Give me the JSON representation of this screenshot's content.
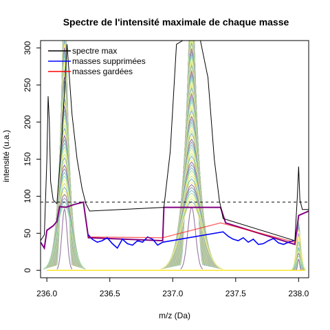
{
  "chart_data": {
    "type": "line",
    "title": "Spectre de l'intensité maximale de chaque masse",
    "xlabel": "m/z (Da)",
    "ylabel": "intensité (u.a.)",
    "xlim": [
      235.95,
      238.08
    ],
    "ylim": [
      -10,
      310
    ],
    "x_ticks": [
      236.0,
      236.5,
      237.0,
      237.5,
      238.0
    ],
    "x_tick_labels": [
      "236.0",
      "236.5",
      "237.0",
      "237.5",
      "238.0"
    ],
    "y_ticks": [
      0,
      50,
      100,
      150,
      200,
      250,
      300
    ],
    "y_tick_labels": [
      "0",
      "50",
      "100",
      "150",
      "200",
      "250",
      "300"
    ],
    "threshold": 92,
    "grid": false,
    "legend_position": "top-left",
    "legend": [
      {
        "label": "spectre max",
        "color": "#000000"
      },
      {
        "label": "masses supprimées",
        "color": "#0000ff"
      },
      {
        "label": "masses gardées",
        "color": "#ff0000"
      }
    ],
    "series": [
      {
        "name": "spectre max",
        "color": "#000000",
        "x": [
          235.95,
          235.98,
          236.0,
          236.01,
          236.02,
          236.03,
          236.05,
          236.08,
          236.12,
          236.16,
          236.2,
          236.24,
          236.28,
          236.31,
          236.34,
          236.93,
          236.98,
          237.03,
          237.08,
          237.15,
          237.22,
          237.28,
          237.33,
          237.37,
          237.4,
          237.97,
          237.99,
          238.0,
          238.01,
          238.03,
          238.08
        ],
        "y": [
          40,
          48,
          150,
          235,
          200,
          120,
          95,
          90,
          180,
          305,
          210,
          150,
          110,
          90,
          80,
          85,
          160,
          305,
          310,
          310,
          310,
          260,
          150,
          95,
          70,
          40,
          100,
          140,
          95,
          82,
          82
        ]
      },
      {
        "name": "masses supprimées",
        "color": "#0000ff",
        "x": [
          236.33,
          236.36,
          236.4,
          236.44,
          236.48,
          236.52,
          236.56,
          236.6,
          236.64,
          236.68,
          236.72,
          236.76,
          236.8,
          236.84,
          236.88,
          236.92,
          237.4,
          237.44,
          237.48,
          237.52,
          237.56,
          237.6,
          237.64,
          237.68,
          237.72,
          237.76,
          237.8,
          237.84,
          237.88,
          237.92,
          237.96
        ],
        "y": [
          48,
          42,
          38,
          40,
          44,
          36,
          30,
          42,
          36,
          34,
          40,
          38,
          45,
          42,
          34,
          38,
          52,
          46,
          42,
          40,
          44,
          38,
          42,
          35,
          36,
          40,
          43,
          37,
          35,
          38,
          40
        ]
      },
      {
        "name": "masses gardées",
        "color": "#ff0000",
        "x": [
          236.33,
          236.92,
          237.38,
          237.97
        ],
        "y": [
          45,
          44,
          64,
          38
        ]
      }
    ]
  }
}
